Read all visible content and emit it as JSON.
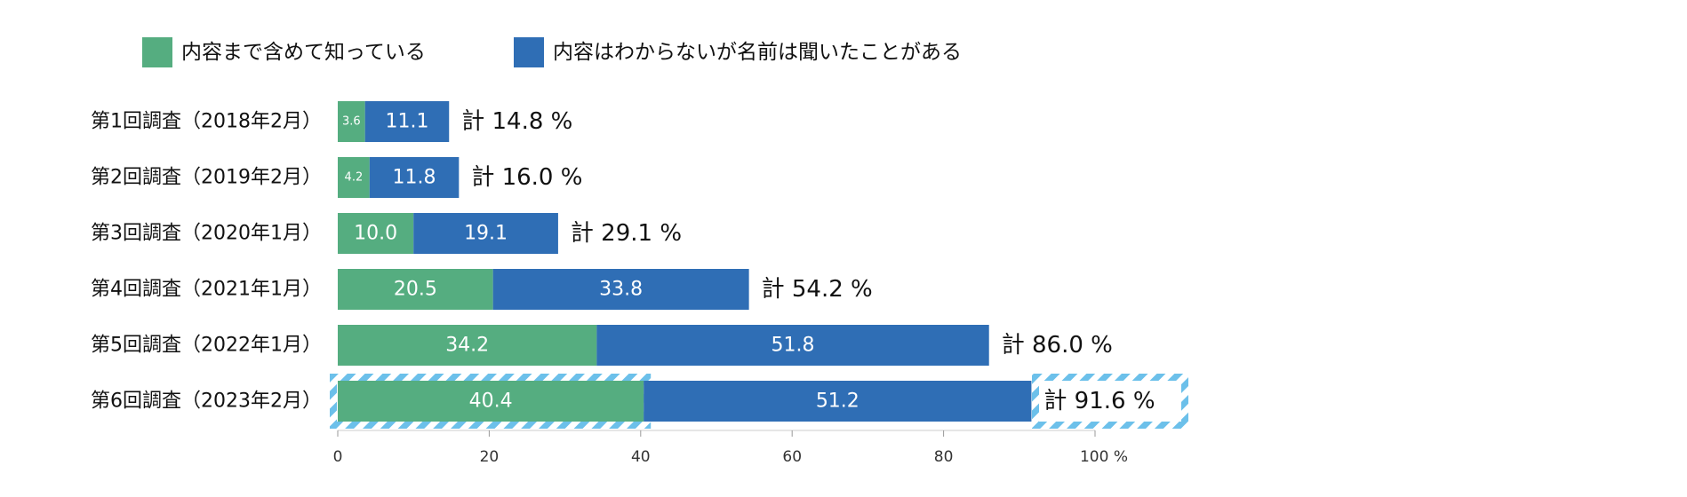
{
  "chart_data": {
    "type": "bar",
    "orientation": "horizontal",
    "stacked": true,
    "categories": [
      "第1回調査（2018年2月）",
      "第2回調査（2019年2月）",
      "第3回調査（2020年1月）",
      "第4回調査（2021年1月）",
      "第5回調査（2022年1月）",
      "第6回調査（2023年2月）"
    ],
    "series": [
      {
        "name": "内容まで含めて知っている",
        "values": [
          3.6,
          4.2,
          10.0,
          20.5,
          34.2,
          40.4
        ],
        "labels": [
          "3.6",
          "4.2",
          "10.0",
          "20.5",
          "34.2",
          "40.4"
        ],
        "color": "#55ad80"
      },
      {
        "name": "内容はわからないが名前は聞いたことがある",
        "values": [
          11.1,
          11.8,
          19.1,
          33.8,
          51.8,
          51.2
        ],
        "labels": [
          "11.1",
          "11.8",
          "19.1",
          "33.8",
          "51.8",
          "51.2"
        ],
        "color": "#2f6eb5"
      }
    ],
    "totals": [
      "計 14.8 %",
      "計 16.0 %",
      "計 29.1 %",
      "計 54.2 %",
      "計 86.0 %",
      "計 91.6 %"
    ],
    "x_ticks": [
      "0",
      "20",
      "40",
      "60",
      "80",
      "100 %"
    ],
    "xlim": [
      0,
      100
    ],
    "highlight_color": "#6cc0ea",
    "legend_position": "top"
  }
}
